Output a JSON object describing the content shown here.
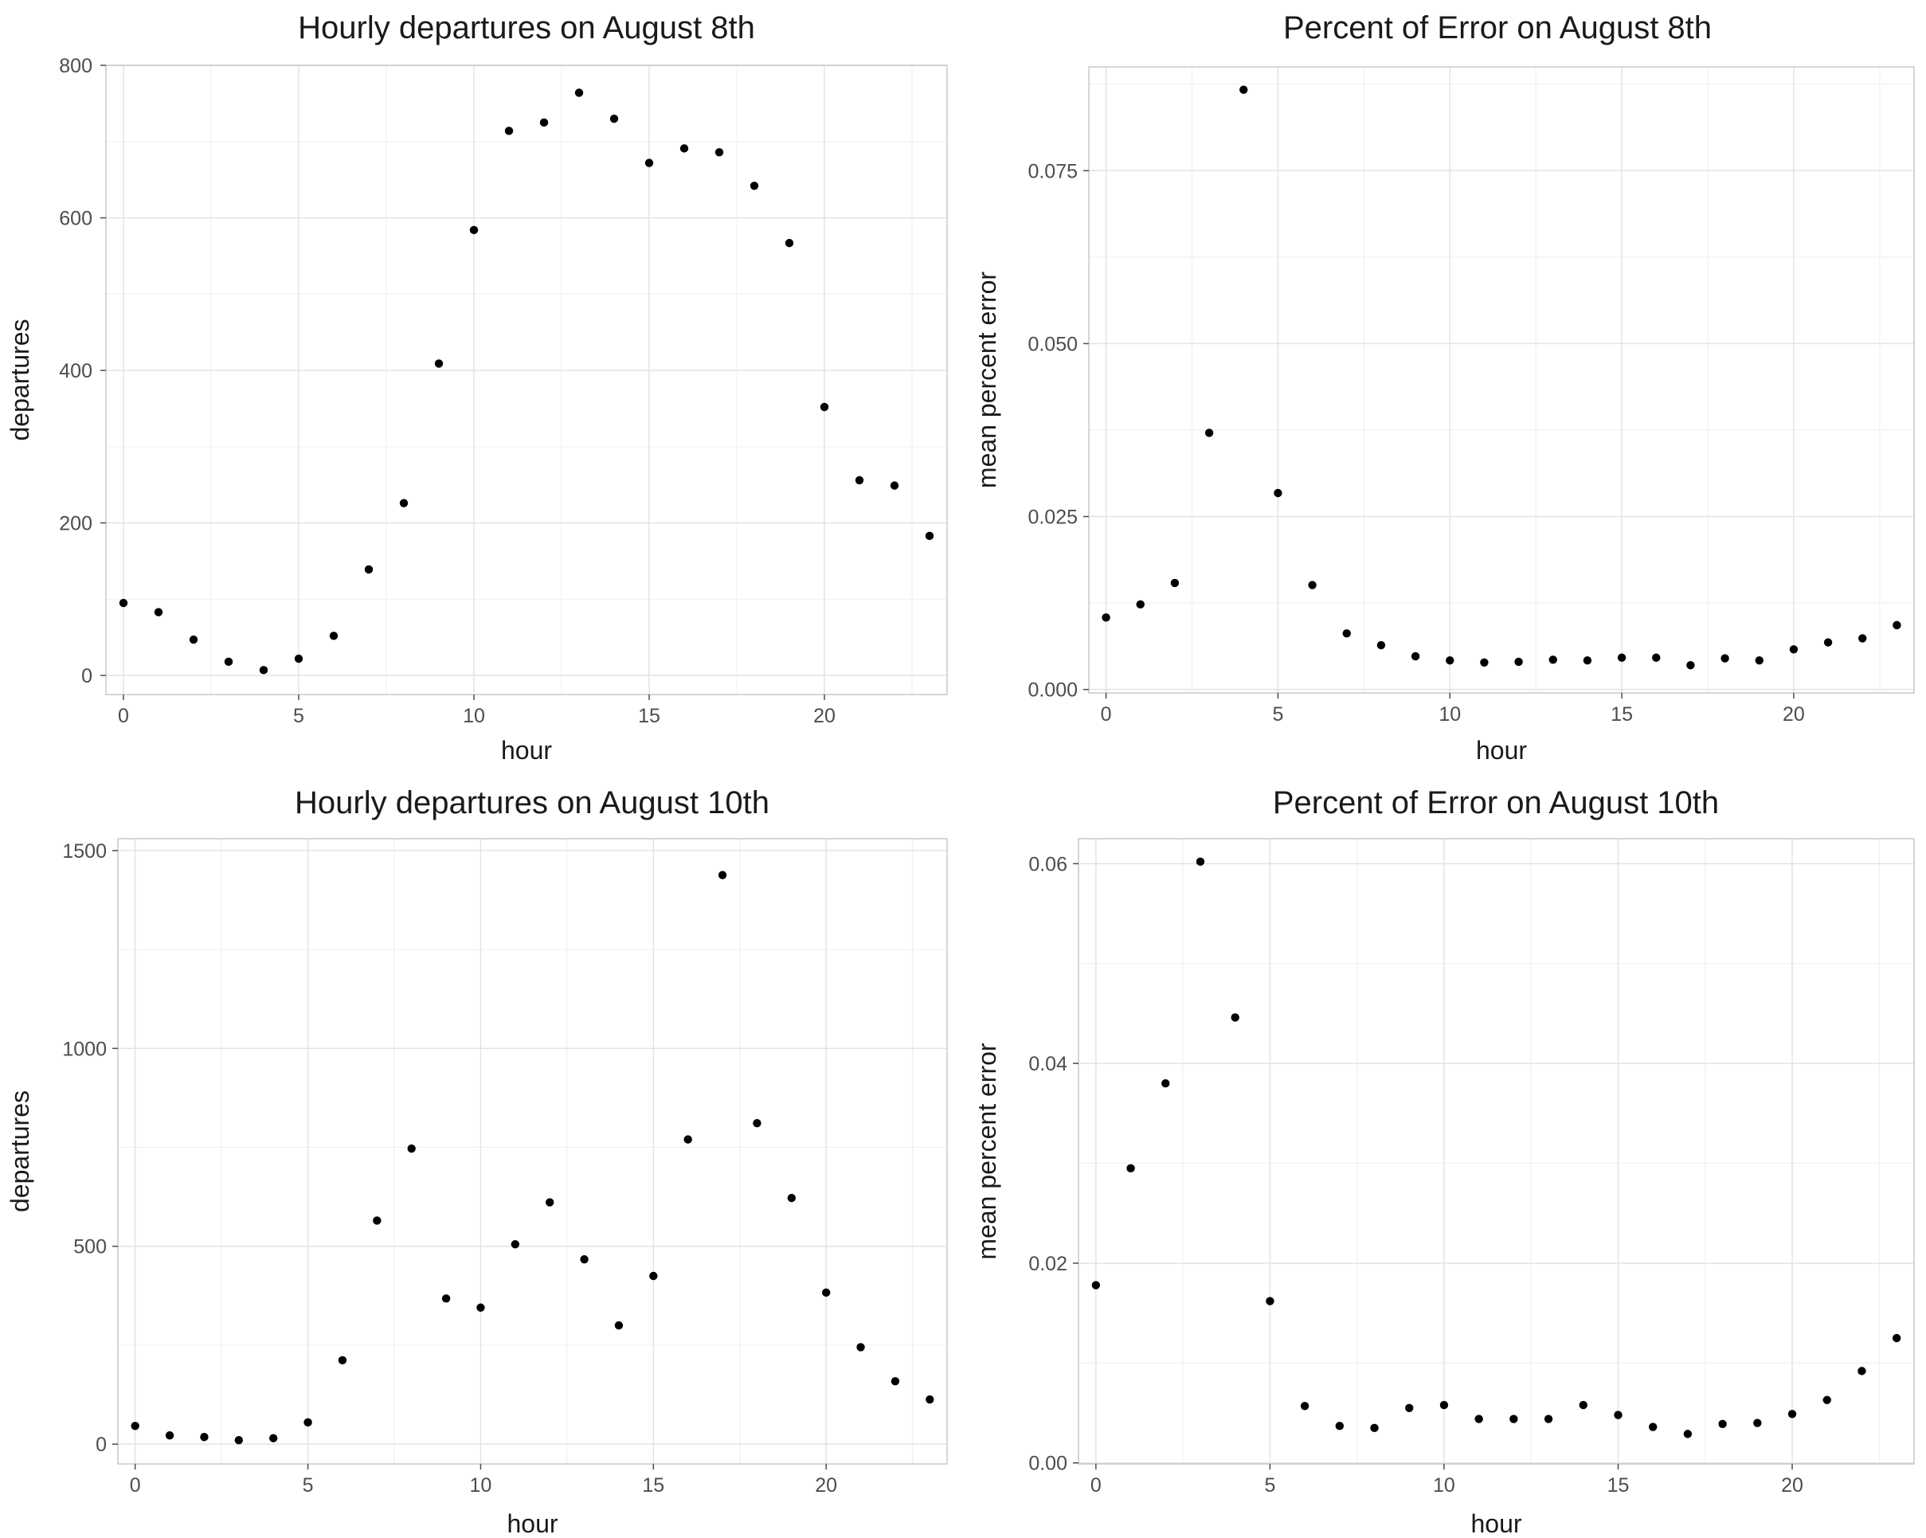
{
  "chart_data": [
    {
      "type": "scatter",
      "title": "Hourly departures on August 8th",
      "xlabel": "hour",
      "ylabel": "departures",
      "xlim": [
        -0.5,
        23.5
      ],
      "ylim": [
        -25,
        800
      ],
      "x_ticks": [
        0,
        5,
        10,
        15,
        20
      ],
      "x_tick_labels": [
        "0",
        "5",
        "10",
        "15",
        "20"
      ],
      "y_ticks": [
        0,
        200,
        400,
        600,
        800
      ],
      "y_tick_labels": [
        "0",
        "200",
        "400",
        "600",
        "800"
      ],
      "grid": true,
      "x": [
        0,
        1,
        2,
        3,
        4,
        5,
        6,
        7,
        8,
        9,
        10,
        11,
        12,
        13,
        14,
        15,
        16,
        17,
        18,
        19,
        20,
        21,
        22,
        23
      ],
      "y": [
        95,
        83,
        47,
        18,
        7,
        22,
        52,
        139,
        226,
        409,
        584,
        714,
        725,
        764,
        730,
        672,
        691,
        686,
        642,
        567,
        352,
        256,
        249,
        183
      ]
    },
    {
      "type": "scatter",
      "title": "Percent of Error on August 8th",
      "xlabel": "hour",
      "ylabel": "mean percent error",
      "xlim": [
        -0.5,
        23.5
      ],
      "ylim": [
        -0.0005,
        0.09
      ],
      "x_ticks": [
        0,
        5,
        10,
        15,
        20
      ],
      "x_tick_labels": [
        "0",
        "5",
        "10",
        "15",
        "20"
      ],
      "y_ticks": [
        0,
        0.025,
        0.05,
        0.075
      ],
      "y_tick_labels": [
        "0.000",
        "0.025",
        "0.050",
        "0.075"
      ],
      "grid": true,
      "x": [
        0,
        1,
        2,
        3,
        4,
        5,
        6,
        7,
        8,
        9,
        10,
        11,
        12,
        13,
        14,
        15,
        16,
        17,
        18,
        19,
        20,
        21,
        22,
        23
      ],
      "y": [
        0.0104,
        0.0123,
        0.0154,
        0.0371,
        0.0867,
        0.0284,
        0.0151,
        0.0081,
        0.0064,
        0.0048,
        0.0042,
        0.0039,
        0.004,
        0.0043,
        0.0042,
        0.0046,
        0.0046,
        0.0035,
        0.0045,
        0.0042,
        0.0058,
        0.0068,
        0.0074,
        0.0093
      ]
    },
    {
      "type": "scatter",
      "title": "Hourly departures on August 10th",
      "xlabel": "hour",
      "ylabel": "departures",
      "xlim": [
        -0.5,
        23.5
      ],
      "ylim": [
        -50,
        1530
      ],
      "x_ticks": [
        0,
        5,
        10,
        15,
        20
      ],
      "x_tick_labels": [
        "0",
        "5",
        "10",
        "15",
        "20"
      ],
      "y_ticks": [
        0,
        500,
        1000,
        1500
      ],
      "y_tick_labels": [
        "0",
        "500",
        "1000",
        "1500"
      ],
      "grid": true,
      "x": [
        0,
        1,
        2,
        3,
        4,
        5,
        6,
        7,
        8,
        9,
        10,
        11,
        12,
        13,
        14,
        15,
        16,
        17,
        18,
        19,
        20,
        21,
        22,
        23
      ],
      "y": [
        46,
        22,
        18,
        10,
        15,
        55,
        212,
        565,
        747,
        368,
        345,
        505,
        611,
        467,
        300,
        425,
        770,
        1438,
        811,
        622,
        383,
        245,
        159,
        113
      ]
    },
    {
      "type": "scatter",
      "title": "Percent of Error on August 10th",
      "xlabel": "hour",
      "ylabel": "mean percent error",
      "xlim": [
        -0.5,
        23.5
      ],
      "ylim": [
        -0.0001,
        0.0625
      ],
      "x_ticks": [
        0,
        5,
        10,
        15,
        20
      ],
      "x_tick_labels": [
        "0",
        "5",
        "10",
        "15",
        "20"
      ],
      "y_ticks": [
        0,
        0.02,
        0.04,
        0.06
      ],
      "y_tick_labels": [
        "0.00",
        "0.02",
        "0.04",
        "0.06"
      ],
      "grid": true,
      "x": [
        0,
        1,
        2,
        3,
        4,
        5,
        6,
        7,
        8,
        9,
        10,
        11,
        12,
        13,
        14,
        15,
        16,
        17,
        18,
        19,
        20,
        21,
        22,
        23
      ],
      "y": [
        0.0178,
        0.0295,
        0.038,
        0.0602,
        0.0446,
        0.0162,
        0.0057,
        0.0037,
        0.0035,
        0.0055,
        0.0058,
        0.0044,
        0.0044,
        0.0044,
        0.0058,
        0.0048,
        0.0036,
        0.0029,
        0.0039,
        0.004,
        0.0049,
        0.0063,
        0.0092,
        0.0125
      ]
    }
  ]
}
